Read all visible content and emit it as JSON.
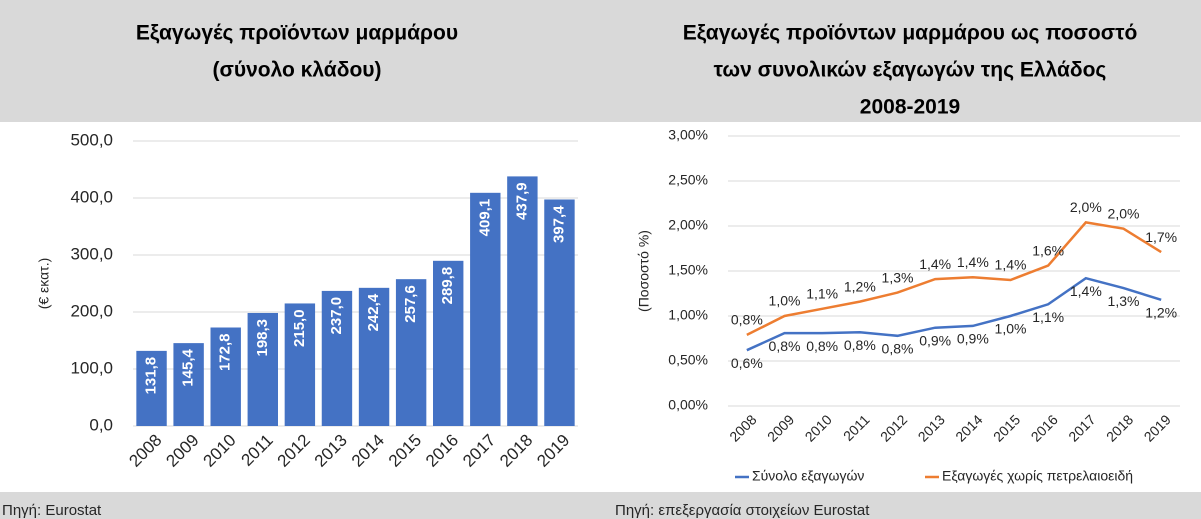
{
  "chart_data": [
    {
      "type": "bar",
      "title": [
        "Εξαγωγές προϊόντων μαρμάρου",
        "(σύνολο κλάδου)"
      ],
      "y_label": "(€ εκατ.)",
      "categories": [
        "2008",
        "2009",
        "2010",
        "2011",
        "2012",
        "2013",
        "2014",
        "2015",
        "2016",
        "2017",
        "2018",
        "2019"
      ],
      "values": [
        131.8,
        145.4,
        172.8,
        198.3,
        215.0,
        237.0,
        242.4,
        257.6,
        289.8,
        409.1,
        437.9,
        397.4
      ],
      "value_labels": [
        "131,8",
        "145,4",
        "172,8",
        "198,3",
        "215,0",
        "237,0",
        "242,4",
        "257,6",
        "289,8",
        "409,1",
        "437,9",
        "397,4"
      ],
      "color": "#4472c4",
      "ylim": [
        0,
        500
      ],
      "yticks": [
        {
          "value": 0,
          "label": "0,0"
        },
        {
          "value": 100,
          "label": "100,0"
        },
        {
          "value": 200,
          "label": "200,0"
        },
        {
          "value": 300,
          "label": "300,0"
        },
        {
          "value": 400,
          "label": "400,0"
        },
        {
          "value": 500,
          "label": "500,0"
        }
      ],
      "grid": true,
      "source": "Πηγή: Eurostat"
    },
    {
      "type": "line",
      "title": [
        "Εξαγωγές προϊόντων μαρμάρου ως ποσοστό",
        "των συνολικών εξαγωγών της Ελλάδος",
        "2008-2019"
      ],
      "y_label": "(Ποσοστό %)",
      "categories": [
        "2008",
        "2009",
        "2010",
        "2011",
        "2012",
        "2013",
        "2014",
        "2015",
        "2016",
        "2017",
        "2018",
        "2019"
      ],
      "series": [
        {
          "name": "Σύνολο εξαγωγών",
          "color": "#4472c4",
          "values": [
            0.62,
            0.81,
            0.81,
            0.82,
            0.78,
            0.87,
            0.89,
            1.0,
            1.13,
            1.42,
            1.31,
            1.18
          ],
          "value_labels": [
            "0,6%",
            "0,8%",
            "0,8%",
            "0,8%",
            "0,8%",
            "0,9%",
            "0,9%",
            "1,0%",
            "1,1%",
            "1,4%",
            "1,3%",
            "1,2%"
          ]
        },
        {
          "name": "Εξαγωγές χωρίς πετρελαιοειδή",
          "color": "#ed7d31",
          "values": [
            0.79,
            1.0,
            1.08,
            1.16,
            1.26,
            1.41,
            1.43,
            1.4,
            1.56,
            2.04,
            1.97,
            1.71
          ],
          "value_labels": [
            "0,8%",
            "1,0%",
            "1,1%",
            "1,2%",
            "1,3%",
            "1,4%",
            "1,4%",
            "1,4%",
            "1,6%",
            "2,0%",
            "2,0%",
            "1,7%"
          ]
        }
      ],
      "ylim": [
        0,
        3
      ],
      "yticks": [
        {
          "value": 0,
          "label": "0,00%"
        },
        {
          "value": 0.5,
          "label": "0,50%"
        },
        {
          "value": 1,
          "label": "1,00%"
        },
        {
          "value": 1.5,
          "label": "1,50%"
        },
        {
          "value": 2,
          "label": "2,00%"
        },
        {
          "value": 2.5,
          "label": "2,50%"
        },
        {
          "value": 3,
          "label": "3,00%"
        }
      ],
      "grid": true,
      "legend": "bottom",
      "source": "Πηγή: επεξεργασία στοιχείων Eurostat"
    }
  ]
}
